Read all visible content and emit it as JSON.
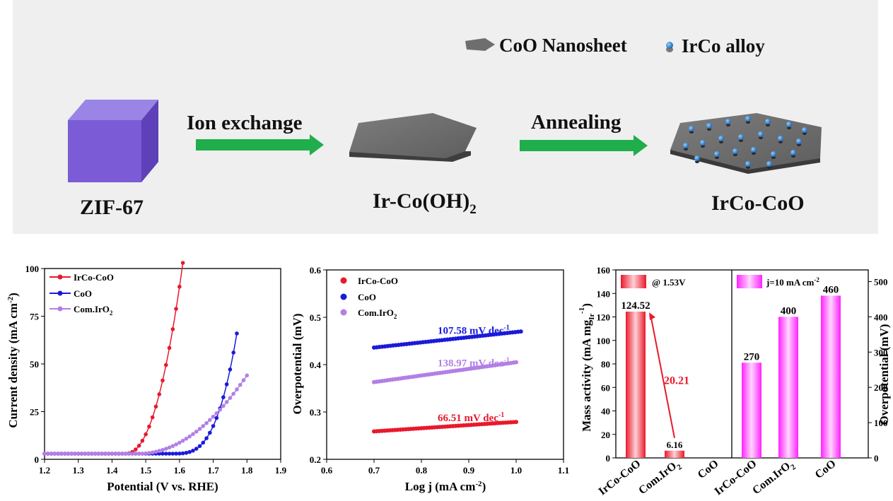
{
  "scheme": {
    "legend": {
      "sheet": "CoO Nanosheet",
      "alloy": "IrCo alloy"
    },
    "steps": [
      {
        "label": "ZIF-67"
      },
      {
        "arrow": "Ion exchange"
      },
      {
        "label_main": "Ir-Co(OH)",
        "label_sub": "2"
      },
      {
        "arrow": "Annealing"
      },
      {
        "label": "IrCo-CoO"
      }
    ],
    "colors": {
      "cube": "#7b5cd6",
      "sheet": "#6b6b6b",
      "arrow": "#1fae4b",
      "dot": "#2f7ad0"
    }
  },
  "chart_data": [
    {
      "type": "line",
      "xlabel": "Potential (V vs. RHE)",
      "ylabel_main": "Current density (mA cm",
      "ylabel_sup": "-2",
      "ylabel_end": ")",
      "xlim": [
        1.2,
        1.9
      ],
      "ylim": [
        0,
        100
      ],
      "xticks": [
        "1.2",
        "1.3",
        "1.4",
        "1.5",
        "1.6",
        "1.7",
        "1.8",
        "1.9"
      ],
      "yticks": [
        "0",
        "25",
        "50",
        "75",
        "100"
      ],
      "legend": "top-left",
      "series": [
        {
          "name": "IrCo-CoO",
          "color": "#e8192c",
          "onset": 1.44,
          "end": 1.61,
          "ymax": 100,
          "power": 2.2
        },
        {
          "name": "CoO",
          "color": "#1a1adb",
          "onset": 1.58,
          "end": 1.77,
          "ymax": 63,
          "power": 3.2
        },
        {
          "name_main": "Com.IrO",
          "name_sub": "2",
          "color": "#b27fe6",
          "onset": 1.48,
          "end": 1.8,
          "ymax": 41,
          "power": 2.0
        }
      ]
    },
    {
      "type": "line",
      "xlabel_main": "Log j (mA cm",
      "xlabel_sup": "-2",
      "xlabel_end": ")",
      "ylabel": "Overpotential (mV)",
      "xlim": [
        0.6,
        1.1
      ],
      "ylim": [
        0.2,
        0.6
      ],
      "xticks": [
        "0.6",
        "0.7",
        "0.8",
        "0.9",
        "1.0",
        "1.1"
      ],
      "yticks": [
        "0.2",
        "0.3",
        "0.4",
        "0.5",
        "0.6"
      ],
      "legend": "top-left",
      "series": [
        {
          "name": "IrCo-CoO",
          "color": "#e8192c",
          "x": [
            0.7,
            1.0
          ],
          "y": [
            0.259,
            0.279
          ],
          "annotation_main": "66.51 mV dec",
          "annotation_sup": "-1"
        },
        {
          "name": "CoO",
          "color": "#1a1adb",
          "x": [
            0.7,
            1.01
          ],
          "y": [
            0.436,
            0.47
          ],
          "annotation_main": "107.58 mV dec",
          "annotation_sup": "-1"
        },
        {
          "name_main": "Com.IrO",
          "name_sub": "2",
          "color": "#b27fe6",
          "x": [
            0.7,
            1.0
          ],
          "y": [
            0.363,
            0.405
          ],
          "annotation_main": "138.97 mV dec",
          "annotation_sup": "-1"
        }
      ]
    },
    {
      "type": "bar",
      "left": {
        "ylabel_main": "Mass activity (mA mg",
        "ylabel_sub": "Ir",
        "ylabel_sup": "-1",
        "ylabel_end": ")",
        "ylim": [
          0,
          160
        ],
        "yticks": [
          "0",
          "20",
          "40",
          "60",
          "80",
          "100",
          "120",
          "140",
          "160"
        ],
        "legend": "@ 1.53V",
        "color": "#e8192c",
        "categories": [
          "IrCo-CoO",
          "Com.IrO2",
          "CoO"
        ],
        "category_labels": [
          {
            "main": "IrCo-CoO",
            "sub": ""
          },
          {
            "main": "Com.IrO",
            "sub": "2"
          },
          {
            "main": "CoO",
            "sub": ""
          }
        ],
        "values": [
          124.52,
          6.16,
          0
        ],
        "data_labels": [
          "124.52",
          "6.16",
          ""
        ],
        "ratio_label": "20.21"
      },
      "right": {
        "ylabel": "Overpotential (mV)",
        "ylim": [
          0,
          533
        ],
        "yticks": [
          "0",
          "100",
          "200",
          "300",
          "400",
          "500"
        ],
        "legend_main": "j=10 mA cm",
        "legend_sup": "-2",
        "color": "#ff22ff",
        "categories": [
          "IrCo-CoO",
          "Com.IrO2",
          "CoO"
        ],
        "category_labels": [
          {
            "main": "IrCo-CoO",
            "sub": ""
          },
          {
            "main": "Com.IrO",
            "sub": "2"
          },
          {
            "main": "CoO",
            "sub": ""
          }
        ],
        "values": [
          270,
          400,
          460
        ],
        "data_labels": [
          "270",
          "400",
          "460"
        ]
      }
    }
  ]
}
